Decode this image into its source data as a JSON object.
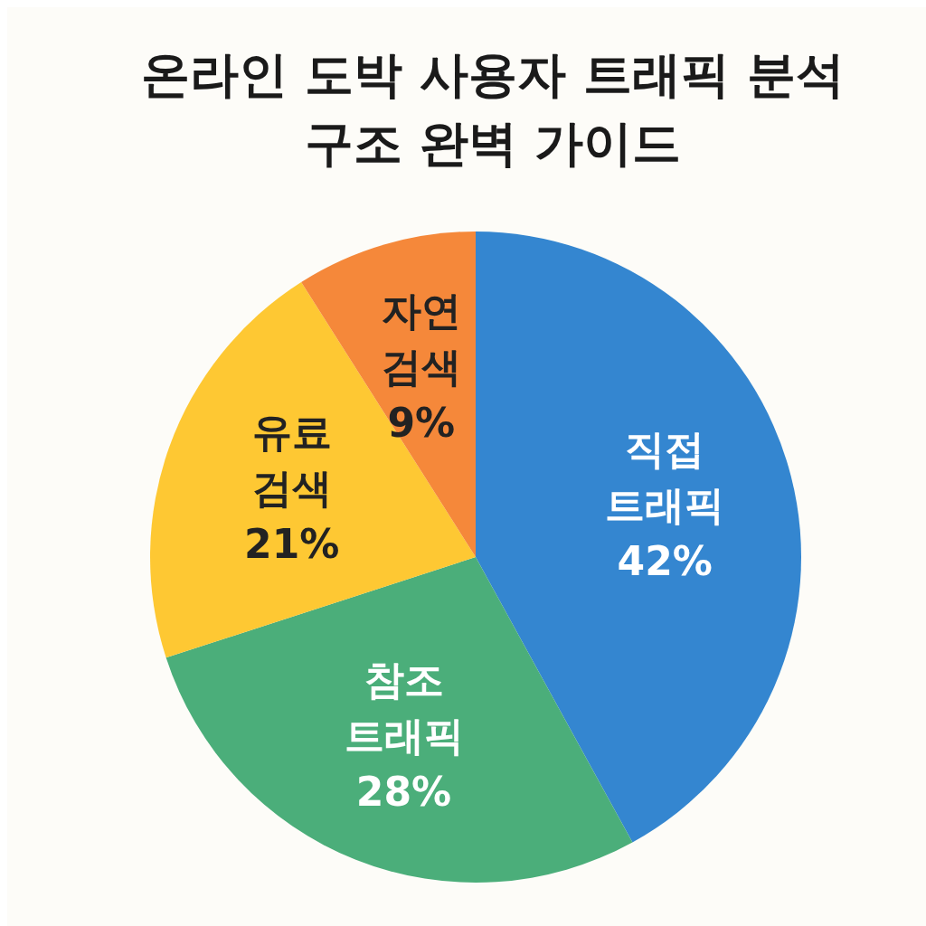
{
  "chart_data": {
    "type": "pie",
    "title": "온라인 도박 사용자 트래픽 분석 구조 완벽 가이드",
    "categories": [
      "직접 트래픽",
      "참조 트래픽",
      "유료 검색",
      "자연 검색"
    ],
    "values": [
      42,
      28,
      21,
      9
    ],
    "colors": [
      "#3486d0",
      "#4bae7a",
      "#fec833",
      "#f5883a"
    ],
    "value_labels": [
      "42%",
      "28%",
      "21%",
      "9%"
    ]
  }
}
